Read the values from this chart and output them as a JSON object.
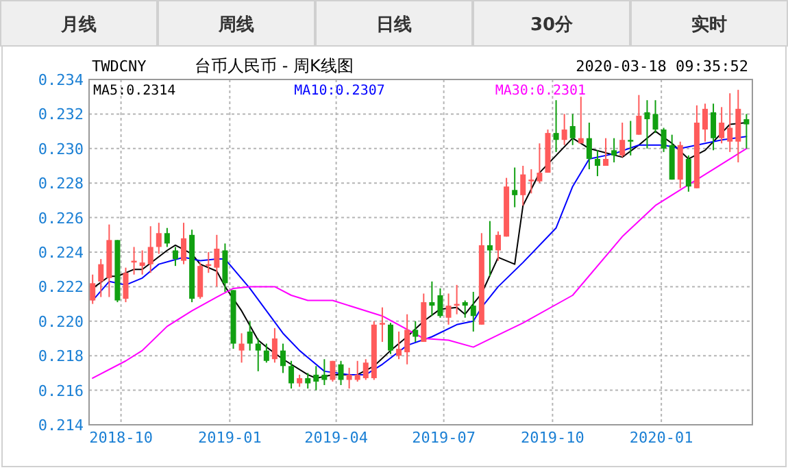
{
  "chart_data": {
    "type": "candlestick",
    "title": "台币人民币 - 周K线图",
    "annotations": [
      "月线",
      "周线",
      "日线",
      "30分",
      "实时",
      "TWDCNY",
      "2020-03-18 09:35:52"
    ],
    "x": [
      "2018-09-07",
      "2018-09-14",
      "2018-09-21",
      "2018-09-28",
      "2018-10-05",
      "2018-10-12",
      "2018-10-19",
      "2018-10-26",
      "2018-11-02",
      "2018-11-09",
      "2018-11-16",
      "2018-11-23",
      "2018-11-30",
      "2018-12-07",
      "2018-12-14",
      "2018-12-21",
      "2018-12-28",
      "2019-01-04",
      "2019-01-11",
      "2019-01-18",
      "2019-01-25",
      "2019-02-01",
      "2019-02-08",
      "2019-02-15",
      "2019-02-22",
      "2019-03-01",
      "2019-03-08",
      "2019-03-15",
      "2019-03-22",
      "2019-03-29",
      "2019-04-05",
      "2019-04-12",
      "2019-04-19",
      "2019-04-26",
      "2019-05-03",
      "2019-05-10",
      "2019-05-17",
      "2019-05-24",
      "2019-05-31",
      "2019-06-07",
      "2019-06-14",
      "2019-06-21",
      "2019-06-28",
      "2019-07-05",
      "2019-07-12",
      "2019-07-19",
      "2019-07-26",
      "2019-08-02",
      "2019-08-09",
      "2019-08-16",
      "2019-08-23",
      "2019-08-30",
      "2019-09-06",
      "2019-09-13",
      "2019-09-20",
      "2019-09-27",
      "2019-10-04",
      "2019-10-11",
      "2019-10-18",
      "2019-10-25",
      "2019-11-01",
      "2019-11-08",
      "2019-11-15",
      "2019-11-22",
      "2019-11-29",
      "2019-12-06",
      "2019-12-13",
      "2019-12-20",
      "2019-12-27",
      "2020-01-03",
      "2020-01-10",
      "2020-01-17",
      "2020-01-24",
      "2020-01-31",
      "2020-02-07",
      "2020-02-14",
      "2020-02-21",
      "2020-02-28",
      "2020-03-06",
      "2020-03-13"
    ],
    "ohlc": [
      [
        0.2212,
        0.2227,
        0.221,
        0.2222
      ],
      [
        0.2223,
        0.2236,
        0.2214,
        0.2233
      ],
      [
        0.2225,
        0.2256,
        0.2214,
        0.2247
      ],
      [
        0.2247,
        0.2247,
        0.2211,
        0.2212
      ],
      [
        0.2213,
        0.2231,
        0.2211,
        0.2228
      ],
      [
        0.2234,
        0.2243,
        0.2227,
        0.2235
      ],
      [
        0.2232,
        0.2241,
        0.2227,
        0.2234
      ],
      [
        0.2233,
        0.2255,
        0.2228,
        0.2243
      ],
      [
        0.2243,
        0.2257,
        0.2239,
        0.2251
      ],
      [
        0.2251,
        0.2254,
        0.2243,
        0.2245
      ],
      [
        0.2241,
        0.2243,
        0.2232,
        0.2236
      ],
      [
        0.2235,
        0.2257,
        0.2233,
        0.2248
      ],
      [
        0.225,
        0.2253,
        0.2211,
        0.2213
      ],
      [
        0.2214,
        0.2234,
        0.2213,
        0.2232
      ],
      [
        0.2232,
        0.224,
        0.2228,
        0.2233
      ],
      [
        0.2231,
        0.225,
        0.222,
        0.2242
      ],
      [
        0.2241,
        0.2245,
        0.2217,
        0.2222
      ],
      [
        0.2218,
        0.2218,
        0.2184,
        0.2187
      ],
      [
        0.2183,
        0.2193,
        0.2176,
        0.2187
      ],
      [
        0.2194,
        0.22,
        0.2183,
        0.2187
      ],
      [
        0.2187,
        0.219,
        0.2171,
        0.2183
      ],
      [
        0.2183,
        0.2187,
        0.2176,
        0.2177
      ],
      [
        0.2178,
        0.2196,
        0.2176,
        0.219
      ],
      [
        0.2183,
        0.2187,
        0.217,
        0.2174
      ],
      [
        0.2174,
        0.2177,
        0.2161,
        0.2164
      ],
      [
        0.2164,
        0.2169,
        0.2162,
        0.2167
      ],
      [
        0.2167,
        0.217,
        0.2161,
        0.2164
      ],
      [
        0.2169,
        0.2174,
        0.216,
        0.2165
      ],
      [
        0.2169,
        0.2178,
        0.2163,
        0.2166
      ],
      [
        0.2166,
        0.2177,
        0.2165,
        0.2177
      ],
      [
        0.2175,
        0.2177,
        0.2163,
        0.2166
      ],
      [
        0.2166,
        0.2173,
        0.2161,
        0.2169
      ],
      [
        0.2166,
        0.2177,
        0.2165,
        0.2169
      ],
      [
        0.2167,
        0.2178,
        0.2166,
        0.2176
      ],
      [
        0.2167,
        0.22,
        0.2166,
        0.2198
      ],
      [
        0.2198,
        0.2208,
        0.2188,
        0.2199
      ],
      [
        0.2198,
        0.2199,
        0.2181,
        0.2183
      ],
      [
        0.218,
        0.2194,
        0.2178,
        0.2184
      ],
      [
        0.2182,
        0.2204,
        0.2175,
        0.2195
      ],
      [
        0.2195,
        0.22,
        0.2188,
        0.2191
      ],
      [
        0.2188,
        0.2216,
        0.2188,
        0.2211
      ],
      [
        0.2211,
        0.2223,
        0.2203,
        0.2209
      ],
      [
        0.2215,
        0.2219,
        0.2202,
        0.2203
      ],
      [
        0.2202,
        0.2216,
        0.2198,
        0.2209
      ],
      [
        0.2209,
        0.2221,
        0.2204,
        0.221
      ],
      [
        0.2211,
        0.2212,
        0.2202,
        0.2209
      ],
      [
        0.2209,
        0.2217,
        0.2194,
        0.2203
      ],
      [
        0.2198,
        0.2251,
        0.2198,
        0.2244
      ],
      [
        0.2244,
        0.2258,
        0.2226,
        0.2241
      ],
      [
        0.2241,
        0.2252,
        0.2235,
        0.225
      ],
      [
        0.2249,
        0.2283,
        0.2249,
        0.2278
      ],
      [
        0.2276,
        0.2289,
        0.2266,
        0.2273
      ],
      [
        0.2273,
        0.229,
        0.2267,
        0.2285
      ],
      [
        0.2281,
        0.2288,
        0.2274,
        0.2282
      ],
      [
        0.2281,
        0.2303,
        0.228,
        0.2286
      ],
      [
        0.2286,
        0.2311,
        0.2286,
        0.2309
      ],
      [
        0.2309,
        0.2328,
        0.2298,
        0.2305
      ],
      [
        0.2305,
        0.232,
        0.2302,
        0.2311
      ],
      [
        0.2313,
        0.232,
        0.2302,
        0.2306
      ],
      [
        0.2303,
        0.233,
        0.2303,
        0.2306
      ],
      [
        0.2306,
        0.2315,
        0.2288,
        0.2294
      ],
      [
        0.2294,
        0.2299,
        0.2284,
        0.229
      ],
      [
        0.229,
        0.2306,
        0.229,
        0.2294
      ],
      [
        0.2299,
        0.2306,
        0.2292,
        0.2296
      ],
      [
        0.2296,
        0.2315,
        0.2295,
        0.2305
      ],
      [
        0.2305,
        0.2316,
        0.2296,
        0.2304
      ],
      [
        0.2308,
        0.2331,
        0.2308,
        0.2319
      ],
      [
        0.2321,
        0.2328,
        0.23,
        0.2317
      ],
      [
        0.232,
        0.2328,
        0.2309,
        0.2311
      ],
      [
        0.2311,
        0.2312,
        0.2298,
        0.23
      ],
      [
        0.2302,
        0.2308,
        0.2282,
        0.2282
      ],
      [
        0.2282,
        0.2304,
        0.2277,
        0.2302
      ],
      [
        0.2294,
        0.2296,
        0.2275,
        0.2278
      ],
      [
        0.2277,
        0.2325,
        0.2277,
        0.2315
      ],
      [
        0.2311,
        0.2326,
        0.2304,
        0.2323
      ],
      [
        0.2321,
        0.2326,
        0.2299,
        0.2306
      ],
      [
        0.2306,
        0.2324,
        0.2303,
        0.2315
      ],
      [
        0.2304,
        0.2332,
        0.2298,
        0.2312
      ],
      [
        0.2304,
        0.2334,
        0.2292,
        0.2323
      ],
      [
        0.2317,
        0.232,
        0.23,
        0.2314
      ]
    ],
    "series": [
      {
        "name": "MA5:0.2314",
        "type": "line",
        "color": "#000000",
        "x": [
          "2018-09-07",
          "2018-09-21",
          "2018-09-28",
          "2018-10-12",
          "2018-10-19",
          "2018-11-09",
          "2018-11-16",
          "2018-11-30",
          "2018-12-07",
          "2018-12-21",
          "2018-12-28",
          "2019-01-11",
          "2019-01-25",
          "2019-02-01",
          "2019-02-15",
          "2019-03-08",
          "2019-03-15",
          "2019-03-29",
          "2019-04-19",
          "2019-05-03",
          "2019-05-17",
          "2019-05-31",
          "2019-06-14",
          "2019-06-28",
          "2019-07-12",
          "2019-07-19",
          "2019-08-02",
          "2019-08-16",
          "2019-08-30",
          "2019-09-06",
          "2019-09-20",
          "2019-10-04",
          "2019-10-18",
          "2019-11-01",
          "2019-11-29",
          "2019-12-13",
          "2019-12-27",
          "2020-01-10",
          "2020-01-24",
          "2020-02-07",
          "2020-02-28",
          "2020-03-13"
        ],
        "values": [
          0.2219,
          0.2226,
          0.2226,
          0.223,
          0.223,
          0.2241,
          0.2244,
          0.2239,
          0.2233,
          0.2229,
          0.222,
          0.2206,
          0.2189,
          0.2185,
          0.2178,
          0.2169,
          0.2167,
          0.2169,
          0.2169,
          0.2174,
          0.2183,
          0.2191,
          0.22,
          0.2207,
          0.2208,
          0.2204,
          0.2216,
          0.2237,
          0.2233,
          0.2267,
          0.2286,
          0.2296,
          0.2306,
          0.23,
          0.2295,
          0.2302,
          0.231,
          0.2303,
          0.2294,
          0.2299,
          0.2314,
          0.2315
        ]
      },
      {
        "name": "MA10:0.2307",
        "type": "line",
        "color": "#0000ff",
        "x": [
          "2018-09-07",
          "2018-09-21",
          "2018-10-05",
          "2018-10-19",
          "2018-11-02",
          "2018-11-23",
          "2018-12-07",
          "2018-12-21",
          "2018-12-28",
          "2019-01-18",
          "2019-02-01",
          "2019-02-15",
          "2019-03-01",
          "2019-03-08",
          "2019-03-22",
          "2019-04-12",
          "2019-04-26",
          "2019-05-10",
          "2019-05-31",
          "2019-06-21",
          "2019-07-12",
          "2019-07-26",
          "2019-08-02",
          "2019-08-16",
          "2019-09-06",
          "2019-10-04",
          "2019-10-18",
          "2019-11-01",
          "2019-11-22",
          "2019-12-13",
          "2020-01-03",
          "2020-01-17",
          "2020-02-07",
          "2020-02-21",
          "2020-03-13"
        ],
        "values": [
          0.2212,
          0.2223,
          0.2221,
          0.2225,
          0.2233,
          0.2237,
          0.2235,
          0.2236,
          0.2236,
          0.2219,
          0.2206,
          0.2193,
          0.2183,
          0.2179,
          0.2171,
          0.2169,
          0.2169,
          0.2175,
          0.2186,
          0.2191,
          0.2198,
          0.22,
          0.2208,
          0.222,
          0.2234,
          0.2254,
          0.2278,
          0.2294,
          0.2297,
          0.2302,
          0.2302,
          0.23,
          0.2303,
          0.2305,
          0.2307
        ]
      },
      {
        "name": "MA30:0.2301",
        "type": "line",
        "color": "#ff00ff",
        "x": [
          "2018-09-07",
          "2018-10-05",
          "2018-10-19",
          "2018-11-09",
          "2018-11-30",
          "2018-12-21",
          "2019-01-04",
          "2019-01-18",
          "2019-02-08",
          "2019-02-22",
          "2019-03-08",
          "2019-03-29",
          "2019-05-10",
          "2019-06-14",
          "2019-07-05",
          "2019-07-26",
          "2019-08-16",
          "2019-09-06",
          "2019-10-18",
          "2019-11-29",
          "2019-12-27",
          "2020-01-24",
          "2020-02-14",
          "2020-03-13"
        ],
        "values": [
          0.2167,
          0.2177,
          0.2183,
          0.2197,
          0.2206,
          0.2214,
          0.2219,
          0.222,
          0.222,
          0.2215,
          0.2212,
          0.2212,
          0.2203,
          0.219,
          0.2189,
          0.2185,
          0.2192,
          0.2199,
          0.2215,
          0.2249,
          0.2267,
          0.2279,
          0.2288,
          0.23
        ]
      }
    ],
    "xlim": [
      "2018-09-04",
      "2020-03-18"
    ],
    "xticks": [
      {
        "value": "2018-10-01",
        "label": "2018-10"
      },
      {
        "value": "2019-01-01",
        "label": "2019-01"
      },
      {
        "value": "2019-04-01",
        "label": "2019-04"
      },
      {
        "value": "2019-07-01",
        "label": "2019-07"
      },
      {
        "value": "2019-10-01",
        "label": "2019-10"
      },
      {
        "value": "2020-01-01",
        "label": "2020-01"
      }
    ],
    "ylim": [
      0.214,
      0.234
    ],
    "yticks": [
      0.214,
      0.216,
      0.218,
      {
        "value": 0.22,
        "label": "0.220"
      },
      0.222,
      0.224,
      0.226,
      0.228,
      {
        "value": 0.23,
        "label": "0.230"
      },
      0.232,
      0.234
    ],
    "grid": true,
    "legend": "top"
  }
}
